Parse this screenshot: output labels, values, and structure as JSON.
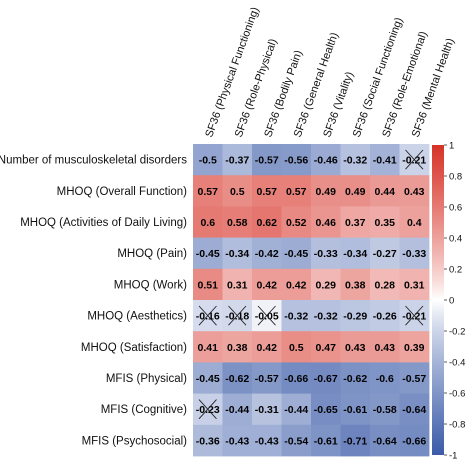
{
  "chart_data": {
    "type": "heatmap",
    "columns": [
      "SF36 (Physical Functioning)",
      "SF36 (Role-Physical)",
      "SF36 (Bodily Pain)",
      "SF36 (General Health)",
      "SF36 (Vitality)",
      "SF36 (Social Functioning)",
      "SF36 (Role-Emotional)",
      "SF36 (Mental Health)"
    ],
    "rows": [
      "Number of musculoskeletal disorders",
      "MHOQ (Overall Function)",
      "MHOQ (Activities of Daily Living)",
      "MHOQ (Pain)",
      "MHOQ (Work)",
      "MHOQ (Aesthetics)",
      "MHOQ (Satisfaction)",
      "MFIS (Physical)",
      "MFIS (Cognitive)",
      "MFIS (Psychosocial)"
    ],
    "values": [
      [
        -0.5,
        -0.37,
        -0.57,
        -0.56,
        -0.46,
        -0.32,
        -0.41,
        -0.21
      ],
      [
        0.57,
        0.5,
        0.57,
        0.57,
        0.49,
        0.49,
        0.44,
        0.43
      ],
      [
        0.6,
        0.58,
        0.62,
        0.52,
        0.46,
        0.37,
        0.35,
        0.4
      ],
      [
        -0.45,
        -0.34,
        -0.42,
        -0.45,
        -0.33,
        -0.34,
        -0.27,
        -0.33
      ],
      [
        0.51,
        0.31,
        0.42,
        0.42,
        0.29,
        0.38,
        0.28,
        0.31
      ],
      [
        -0.16,
        -0.18,
        -0.05,
        -0.32,
        -0.32,
        -0.29,
        -0.26,
        -0.21
      ],
      [
        0.41,
        0.38,
        0.42,
        0.5,
        0.47,
        0.43,
        0.43,
        0.39
      ],
      [
        -0.45,
        -0.62,
        -0.57,
        -0.66,
        -0.67,
        -0.62,
        -0.6,
        -0.57
      ],
      [
        -0.23,
        -0.44,
        -0.31,
        -0.44,
        -0.65,
        -0.61,
        -0.58,
        -0.64
      ],
      [
        -0.36,
        -0.43,
        -0.43,
        -0.54,
        -0.61,
        -0.71,
        -0.64,
        -0.66
      ]
    ],
    "crossed_out": [
      [
        0,
        7
      ],
      [
        5,
        0
      ],
      [
        5,
        1
      ],
      [
        5,
        2
      ],
      [
        5,
        7
      ],
      [
        8,
        0
      ]
    ],
    "color_scale": {
      "min": -1,
      "max": 1,
      "low": "#3b5ba8",
      "mid": "#ffffff",
      "high": "#d73227"
    },
    "colorbar_ticks": [
      1,
      0.8,
      0.6,
      0.4,
      0.2,
      0,
      -0.2,
      -0.4,
      -0.6,
      -0.8,
      -1
    ],
    "legend": "right"
  }
}
